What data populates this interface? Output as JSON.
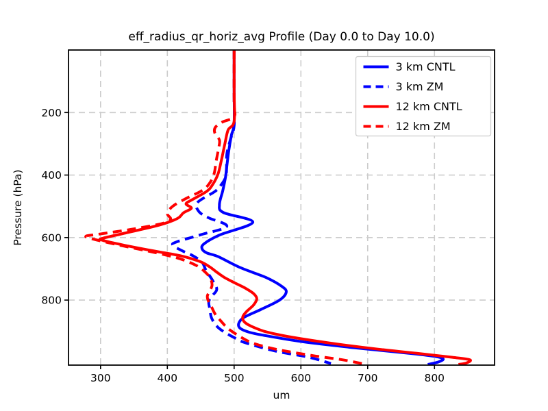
{
  "figure": {
    "title": "eff_radius_qr_horiz_avg Profile (Day 0.0 to Day 10.0)"
  },
  "chart_data": {
    "type": "line",
    "title": "eff_radius_qr_horiz_avg Profile (Day 0.0 to Day 10.0)",
    "xlabel": "um",
    "ylabel": "Pressure (hPa)",
    "xlim": [
      252,
      890
    ],
    "ylim": [
      0,
      1008
    ],
    "y_inverted": true,
    "grid": true,
    "grid_color": "#cccccc",
    "frame_color": "#000000",
    "background_color": "#ffffff",
    "legend_position": "upper right",
    "legend_border_color": "#cccccc",
    "x_ticks": [
      300,
      400,
      500,
      600,
      700,
      800
    ],
    "y_ticks": [
      200,
      400,
      600,
      800
    ],
    "series": [
      {
        "name": "3 km CNTL",
        "color": "#0000ff",
        "style": "solid",
        "points": [
          [
            500,
            0
          ],
          [
            500,
            120
          ],
          [
            500,
            235
          ],
          [
            496,
            272
          ],
          [
            492,
            322
          ],
          [
            489,
            372
          ],
          [
            487,
            408
          ],
          [
            483,
            450
          ],
          [
            478,
            495
          ],
          [
            484,
            520
          ],
          [
            528,
            551
          ],
          [
            478,
            592
          ],
          [
            455,
            620
          ],
          [
            452,
            636
          ],
          [
            459,
            649
          ],
          [
            476,
            661
          ],
          [
            509,
            696
          ],
          [
            548,
            728
          ],
          [
            572,
            757
          ],
          [
            578,
            775
          ],
          [
            568,
            800
          ],
          [
            540,
            830
          ],
          [
            515,
            855
          ],
          [
            507,
            874
          ],
          [
            509,
            890
          ],
          [
            523,
            903
          ],
          [
            545,
            913
          ],
          [
            602,
            933
          ],
          [
            682,
            953
          ],
          [
            762,
            970
          ],
          [
            800,
            980
          ],
          [
            813,
            988
          ],
          [
            806,
            998
          ],
          [
            790,
            1006
          ]
        ]
      },
      {
        "name": "3 km ZM",
        "color": "#0000ff",
        "style": "dashed",
        "points": [
          [
            500,
            0
          ],
          [
            500,
            150
          ],
          [
            500,
            242
          ],
          [
            494,
            290
          ],
          [
            489,
            335
          ],
          [
            488,
            400
          ],
          [
            480,
            433
          ],
          [
            471,
            453
          ],
          [
            445,
            488
          ],
          [
            447,
            516
          ],
          [
            461,
            536
          ],
          [
            489,
            564
          ],
          [
            450,
            591
          ],
          [
            415,
            613
          ],
          [
            408,
            624
          ],
          [
            421,
            641
          ],
          [
            439,
            659
          ],
          [
            452,
            679
          ],
          [
            458,
            705
          ],
          [
            468,
            738
          ],
          [
            474,
            766
          ],
          [
            466,
            789
          ],
          [
            462,
            806
          ],
          [
            464,
            832
          ],
          [
            466,
            856
          ],
          [
            473,
            881
          ],
          [
            483,
            899
          ],
          [
            500,
            920
          ],
          [
            516,
            936
          ],
          [
            562,
            963
          ],
          [
            612,
            983
          ],
          [
            645,
            1003
          ]
        ]
      },
      {
        "name": "12 km CNTL",
        "color": "#ff0000",
        "style": "solid",
        "points": [
          [
            500,
            0
          ],
          [
            500,
            130
          ],
          [
            500,
            228
          ],
          [
            491,
            256
          ],
          [
            486,
            302
          ],
          [
            481,
            352
          ],
          [
            476,
            396
          ],
          [
            468,
            430
          ],
          [
            459,
            452
          ],
          [
            438,
            478
          ],
          [
            428,
            492
          ],
          [
            436,
            506
          ],
          [
            424,
            521
          ],
          [
            415,
            539
          ],
          [
            388,
            560
          ],
          [
            338,
            585
          ],
          [
            304,
            602
          ],
          [
            302,
            608
          ],
          [
            332,
            623
          ],
          [
            380,
            643
          ],
          [
            421,
            659
          ],
          [
            449,
            677
          ],
          [
            463,
            693
          ],
          [
            473,
            709
          ],
          [
            485,
            727
          ],
          [
            501,
            745
          ],
          [
            516,
            761
          ],
          [
            529,
            779
          ],
          [
            534,
            796
          ],
          [
            529,
            816
          ],
          [
            519,
            836
          ],
          [
            513,
            853
          ],
          [
            515,
            869
          ],
          [
            525,
            883
          ],
          [
            547,
            901
          ],
          [
            582,
            917
          ],
          [
            642,
            937
          ],
          [
            712,
            956
          ],
          [
            777,
            971
          ],
          [
            827,
            983
          ],
          [
            853,
            991
          ],
          [
            848,
            1001
          ],
          [
            836,
            1006
          ]
        ]
      },
      {
        "name": "12 km ZM",
        "color": "#ff0000",
        "style": "dashed",
        "points": [
          [
            500,
            0
          ],
          [
            500,
            170
          ],
          [
            500,
            213
          ],
          [
            482,
            231
          ],
          [
            472,
            247
          ],
          [
            471,
            265
          ],
          [
            478,
            288
          ],
          [
            477,
            312
          ],
          [
            473,
            356
          ],
          [
            470,
            396
          ],
          [
            462,
            430
          ],
          [
            450,
            452
          ],
          [
            428,
            475
          ],
          [
            408,
            500
          ],
          [
            400,
            523
          ],
          [
            405,
            541
          ],
          [
            394,
            554
          ],
          [
            348,
            573
          ],
          [
            298,
            589
          ],
          [
            278,
            596
          ],
          [
            291,
            606
          ],
          [
            332,
            626
          ],
          [
            384,
            649
          ],
          [
            419,
            668
          ],
          [
            443,
            689
          ],
          [
            456,
            709
          ],
          [
            464,
            729
          ],
          [
            467,
            751
          ],
          [
            464,
            769
          ],
          [
            460,
            786
          ],
          [
            461,
            801
          ],
          [
            466,
            821
          ],
          [
            472,
            846
          ],
          [
            481,
            869
          ],
          [
            491,
            891
          ],
          [
            506,
            913
          ],
          [
            526,
            936
          ],
          [
            554,
            953
          ],
          [
            582,
            965
          ],
          [
            622,
            979
          ],
          [
            662,
            991
          ],
          [
            696,
            1005
          ]
        ]
      }
    ]
  }
}
